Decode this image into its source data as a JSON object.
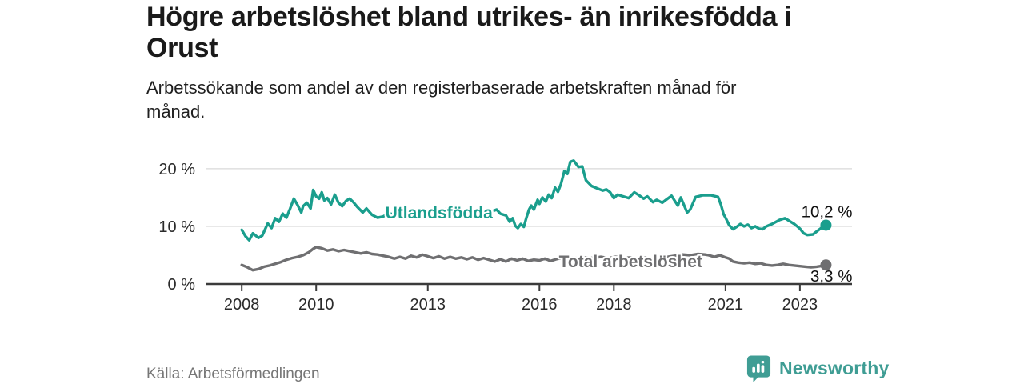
{
  "header": {
    "title": "Högre arbetslöshet bland utrikes- än inrikesfödda i Orust",
    "title_lines": [
      "Högre arbetslöshet bland utrikes- än inrikesfödda i",
      "Orust"
    ],
    "subtitle": "Arbetssökande som andel av den registerbaserade arbetskraften månad för månad.",
    "subtitle_lines": [
      "Arbetssökande som andel av den registerbaserade arbetskraften månad för",
      "månad."
    ]
  },
  "footer": {
    "source": "Källa: Arbetsförmedlingen",
    "brand": "Newsworthy",
    "brand_icon": "bar-chart-bubble-icon",
    "brand_color": "#3f9d94"
  },
  "chart_data": {
    "type": "line",
    "title": "Högre arbetslöshet bland utrikes- än inrikesfödda i Orust",
    "subtitle": "Arbetssökande som andel av den registerbaserade arbetskraften månad för månad.",
    "unit": "%",
    "grid": "horizontal",
    "grid_color": "#d9d9d9",
    "axis_color": "#3b3b3b",
    "x_range": [
      2007.05,
      2024.4
    ],
    "y_range": [
      0,
      22.2
    ],
    "x_ticks": [
      {
        "v": 2008,
        "label": "2008"
      },
      {
        "v": 2010,
        "label": "2010"
      },
      {
        "v": 2013,
        "label": "2013"
      },
      {
        "v": 2016,
        "label": "2016"
      },
      {
        "v": 2018,
        "label": "2018"
      },
      {
        "v": 2021,
        "label": "2021"
      },
      {
        "v": 2023,
        "label": "2023"
      }
    ],
    "y_ticks": [
      {
        "v": 0,
        "label": "0 %"
      },
      {
        "v": 10,
        "label": "10 %"
      },
      {
        "v": 20,
        "label": "20 %"
      }
    ],
    "series": [
      {
        "name": "Utlandsfödda",
        "color": "#1a9e8d",
        "end_label": "10,2 %",
        "end_value": 10.2,
        "end_label_side": "above",
        "end_dot": true,
        "label_pos": {
          "x": 2013.3,
          "y": 12.35
        },
        "points": [
          [
            2008.0,
            9.4
          ],
          [
            2008.1,
            8.3
          ],
          [
            2008.2,
            7.6
          ],
          [
            2008.3,
            8.8
          ],
          [
            2008.45,
            8.0
          ],
          [
            2008.55,
            8.4
          ],
          [
            2008.7,
            10.5
          ],
          [
            2008.8,
            9.7
          ],
          [
            2008.9,
            11.4
          ],
          [
            2009.0,
            10.8
          ],
          [
            2009.1,
            12.2
          ],
          [
            2009.2,
            11.5
          ],
          [
            2009.3,
            13.1
          ],
          [
            2009.4,
            14.8
          ],
          [
            2009.5,
            13.7
          ],
          [
            2009.6,
            12.4
          ],
          [
            2009.65,
            13.5
          ],
          [
            2009.75,
            14.1
          ],
          [
            2009.85,
            13.1
          ],
          [
            2009.92,
            16.3
          ],
          [
            2010.0,
            15.2
          ],
          [
            2010.08,
            14.8
          ],
          [
            2010.15,
            15.9
          ],
          [
            2010.22,
            14.5
          ],
          [
            2010.3,
            14.9
          ],
          [
            2010.4,
            13.8
          ],
          [
            2010.5,
            15.5
          ],
          [
            2010.6,
            14.1
          ],
          [
            2010.7,
            13.5
          ],
          [
            2010.8,
            14.4
          ],
          [
            2010.9,
            14.8
          ],
          [
            2011.0,
            14.2
          ],
          [
            2011.1,
            13.4
          ],
          [
            2011.25,
            12.4
          ],
          [
            2011.35,
            13.1
          ],
          [
            2011.5,
            12.0
          ],
          [
            2011.65,
            11.5
          ],
          [
            2011.8,
            11.7
          ],
          [
            2011.95,
            12.3
          ],
          [
            2012.1,
            12.0
          ],
          [
            2012.25,
            12.6
          ],
          [
            2012.4,
            12.2
          ],
          [
            2012.55,
            12.9
          ],
          [
            2012.7,
            12.4
          ],
          [
            2012.85,
            13.0
          ],
          [
            2013.0,
            12.6
          ],
          [
            2013.15,
            13.1
          ],
          [
            2013.3,
            12.7
          ],
          [
            2013.45,
            13.0
          ],
          [
            2013.6,
            12.4
          ],
          [
            2013.75,
            12.8
          ],
          [
            2013.9,
            12.3
          ],
          [
            2014.05,
            12.6
          ],
          [
            2014.2,
            12.1
          ],
          [
            2014.35,
            12.5
          ],
          [
            2014.5,
            12.1
          ],
          [
            2014.65,
            12.4
          ],
          [
            2014.85,
            12.9
          ],
          [
            2014.95,
            12.2
          ],
          [
            2015.1,
            11.9
          ],
          [
            2015.2,
            10.8
          ],
          [
            2015.28,
            11.4
          ],
          [
            2015.35,
            10.1
          ],
          [
            2015.42,
            9.7
          ],
          [
            2015.5,
            10.4
          ],
          [
            2015.58,
            9.9
          ],
          [
            2015.65,
            11.5
          ],
          [
            2015.72,
            12.9
          ],
          [
            2015.78,
            13.6
          ],
          [
            2015.85,
            12.9
          ],
          [
            2015.95,
            14.6
          ],
          [
            2016.0,
            13.9
          ],
          [
            2016.08,
            15.0
          ],
          [
            2016.17,
            14.3
          ],
          [
            2016.25,
            15.5
          ],
          [
            2016.33,
            14.9
          ],
          [
            2016.42,
            16.7
          ],
          [
            2016.5,
            16.0
          ],
          [
            2016.58,
            17.4
          ],
          [
            2016.67,
            19.6
          ],
          [
            2016.75,
            19.1
          ],
          [
            2016.83,
            21.2
          ],
          [
            2016.92,
            21.4
          ],
          [
            2017.05,
            20.3
          ],
          [
            2017.15,
            20.4
          ],
          [
            2017.25,
            18.0
          ],
          [
            2017.4,
            17.0
          ],
          [
            2017.55,
            16.6
          ],
          [
            2017.7,
            16.2
          ],
          [
            2017.8,
            16.4
          ],
          [
            2017.9,
            15.9
          ],
          [
            2018.0,
            14.9
          ],
          [
            2018.1,
            15.5
          ],
          [
            2018.25,
            15.2
          ],
          [
            2018.4,
            14.9
          ],
          [
            2018.55,
            15.9
          ],
          [
            2018.65,
            15.5
          ],
          [
            2018.8,
            14.8
          ],
          [
            2018.9,
            15.2
          ],
          [
            2019.05,
            14.2
          ],
          [
            2019.15,
            14.6
          ],
          [
            2019.3,
            14.1
          ],
          [
            2019.42,
            14.7
          ],
          [
            2019.55,
            15.3
          ],
          [
            2019.63,
            14.5
          ],
          [
            2019.72,
            13.6
          ],
          [
            2019.8,
            15.0
          ],
          [
            2019.97,
            12.4
          ],
          [
            2020.05,
            12.9
          ],
          [
            2020.2,
            15.1
          ],
          [
            2020.4,
            15.4
          ],
          [
            2020.6,
            15.4
          ],
          [
            2020.8,
            15.1
          ],
          [
            2020.88,
            13.7
          ],
          [
            2020.95,
            12.1
          ],
          [
            2021.0,
            11.5
          ],
          [
            2021.1,
            10.2
          ],
          [
            2021.2,
            9.5
          ],
          [
            2021.3,
            9.9
          ],
          [
            2021.4,
            10.4
          ],
          [
            2021.5,
            10.0
          ],
          [
            2021.6,
            10.3
          ],
          [
            2021.7,
            9.7
          ],
          [
            2021.8,
            10.0
          ],
          [
            2021.9,
            9.6
          ],
          [
            2022.0,
            9.5
          ],
          [
            2022.1,
            10.0
          ],
          [
            2022.25,
            10.4
          ],
          [
            2022.45,
            11.1
          ],
          [
            2022.6,
            11.4
          ],
          [
            2022.75,
            10.8
          ],
          [
            2022.85,
            10.4
          ],
          [
            2023.0,
            9.6
          ],
          [
            2023.1,
            8.8
          ],
          [
            2023.2,
            8.5
          ],
          [
            2023.35,
            8.6
          ],
          [
            2023.45,
            9.1
          ],
          [
            2023.55,
            9.6
          ],
          [
            2023.65,
            10.1
          ],
          [
            2023.7,
            10.2
          ]
        ]
      },
      {
        "name": "Total arbetslöshet",
        "color": "#6f6f71",
        "end_label": "3,3 %",
        "end_value": 3.3,
        "end_label_side": "below",
        "end_dot": true,
        "label_pos": {
          "x": 2018.45,
          "y": 3.9
        },
        "points": [
          [
            2008.0,
            3.3
          ],
          [
            2008.15,
            2.9
          ],
          [
            2008.3,
            2.4
          ],
          [
            2008.45,
            2.6
          ],
          [
            2008.6,
            3.0
          ],
          [
            2008.75,
            3.2
          ],
          [
            2008.9,
            3.5
          ],
          [
            2009.05,
            3.8
          ],
          [
            2009.2,
            4.2
          ],
          [
            2009.35,
            4.5
          ],
          [
            2009.5,
            4.7
          ],
          [
            2009.65,
            5.0
          ],
          [
            2009.8,
            5.5
          ],
          [
            2009.92,
            6.1
          ],
          [
            2010.0,
            6.4
          ],
          [
            2010.15,
            6.2
          ],
          [
            2010.3,
            5.8
          ],
          [
            2010.45,
            6.0
          ],
          [
            2010.6,
            5.7
          ],
          [
            2010.75,
            5.9
          ],
          [
            2010.9,
            5.7
          ],
          [
            2011.05,
            5.5
          ],
          [
            2011.2,
            5.3
          ],
          [
            2011.35,
            5.5
          ],
          [
            2011.5,
            5.2
          ],
          [
            2011.65,
            5.1
          ],
          [
            2011.8,
            4.9
          ],
          [
            2011.95,
            4.7
          ],
          [
            2012.1,
            4.4
          ],
          [
            2012.25,
            4.7
          ],
          [
            2012.4,
            4.4
          ],
          [
            2012.55,
            4.9
          ],
          [
            2012.7,
            4.6
          ],
          [
            2012.85,
            5.1
          ],
          [
            2013.0,
            4.8
          ],
          [
            2013.15,
            4.5
          ],
          [
            2013.3,
            4.8
          ],
          [
            2013.45,
            4.4
          ],
          [
            2013.6,
            4.7
          ],
          [
            2013.75,
            4.4
          ],
          [
            2013.9,
            4.6
          ],
          [
            2014.05,
            4.3
          ],
          [
            2014.2,
            4.6
          ],
          [
            2014.35,
            4.2
          ],
          [
            2014.5,
            4.5
          ],
          [
            2014.65,
            4.2
          ],
          [
            2014.8,
            3.9
          ],
          [
            2014.95,
            4.3
          ],
          [
            2015.1,
            3.9
          ],
          [
            2015.25,
            4.4
          ],
          [
            2015.4,
            4.1
          ],
          [
            2015.55,
            4.4
          ],
          [
            2015.7,
            4.0
          ],
          [
            2015.85,
            4.2
          ],
          [
            2016.0,
            4.1
          ],
          [
            2016.15,
            4.4
          ],
          [
            2016.3,
            4.0
          ],
          [
            2016.45,
            4.3
          ],
          [
            2016.6,
            4.5
          ],
          [
            2016.75,
            4.3
          ],
          [
            2016.9,
            4.6
          ],
          [
            2017.05,
            4.4
          ],
          [
            2017.25,
            4.6
          ],
          [
            2017.45,
            4.5
          ],
          [
            2017.65,
            4.7
          ],
          [
            2017.85,
            4.5
          ],
          [
            2018.05,
            4.7
          ],
          [
            2018.25,
            4.5
          ],
          [
            2018.45,
            4.6
          ],
          [
            2018.65,
            4.4
          ],
          [
            2018.85,
            4.6
          ],
          [
            2019.05,
            4.4
          ],
          [
            2019.25,
            4.5
          ],
          [
            2019.45,
            4.7
          ],
          [
            2019.65,
            4.9
          ],
          [
            2019.85,
            5.1
          ],
          [
            2020.05,
            5.0
          ],
          [
            2020.25,
            5.2
          ],
          [
            2020.45,
            5.1
          ],
          [
            2020.55,
            5.0
          ],
          [
            2020.7,
            4.7
          ],
          [
            2020.85,
            5.0
          ],
          [
            2021.0,
            4.6
          ],
          [
            2021.1,
            4.4
          ],
          [
            2021.2,
            3.9
          ],
          [
            2021.35,
            3.7
          ],
          [
            2021.5,
            3.6
          ],
          [
            2021.65,
            3.7
          ],
          [
            2021.8,
            3.5
          ],
          [
            2021.95,
            3.6
          ],
          [
            2022.1,
            3.3
          ],
          [
            2022.25,
            3.2
          ],
          [
            2022.4,
            3.3
          ],
          [
            2022.55,
            3.5
          ],
          [
            2022.7,
            3.3
          ],
          [
            2022.85,
            3.2
          ],
          [
            2023.0,
            3.1
          ],
          [
            2023.15,
            3.0
          ],
          [
            2023.3,
            2.9
          ],
          [
            2023.45,
            3.0
          ],
          [
            2023.55,
            3.1
          ],
          [
            2023.65,
            3.3
          ],
          [
            2023.7,
            3.3
          ]
        ]
      }
    ]
  }
}
